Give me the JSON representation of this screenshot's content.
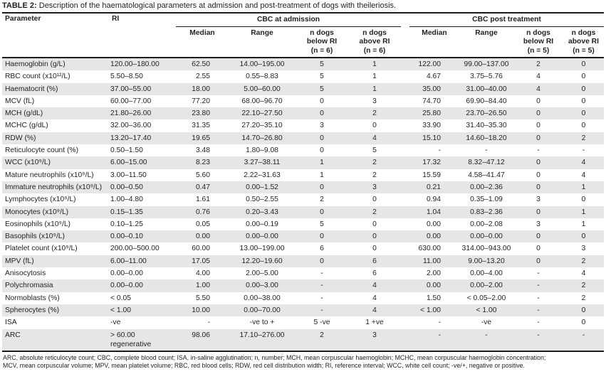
{
  "title": {
    "label": "TABLE 2:",
    "text": " Description of the haematological parameters at admission and post-treatment of dogs with theileriosis."
  },
  "table": {
    "header": {
      "parameter": "Parameter",
      "ri": "RI",
      "group_admission": "CBC at admission",
      "group_post": "CBC post treatment",
      "adm_cols": [
        "Median",
        "Range",
        "n dogs\nbelow RI\n(n = 6)",
        "n dogs\nabove RI\n(n = 6)"
      ],
      "post_cols": [
        "Median",
        "Range",
        "n dogs\nbelow RI\n(n = 5)",
        "n dogs\nabove RI\n(n = 5)"
      ]
    },
    "rows": [
      {
        "parameter": "Haemoglobin (g/L)",
        "ri": "120.00–180.00",
        "adm": [
          "62.50",
          "14.00–195.00",
          "5",
          "1"
        ],
        "post": [
          "122.00",
          "99.00–137.00",
          "2",
          "0"
        ]
      },
      {
        "parameter": "RBC count (x10¹²/L)",
        "ri": "5.50–8.50",
        "adm": [
          "2.55",
          "0.55–8.83",
          "5",
          "1"
        ],
        "post": [
          "4.67",
          "3.75–5.76",
          "4",
          "0"
        ]
      },
      {
        "parameter": "Haematocrit (%)",
        "ri": "37.00–55.00",
        "adm": [
          "18.00",
          "5.00–60.00",
          "5",
          "1"
        ],
        "post": [
          "35.00",
          "31.00–40.00",
          "4",
          "0"
        ]
      },
      {
        "parameter": "MCV (fL)",
        "ri": "60.00–77.00",
        "adm": [
          "77.20",
          "68.00–96.70",
          "0",
          "3"
        ],
        "post": [
          "74.70",
          "69.90–84.40",
          "0",
          "0"
        ]
      },
      {
        "parameter": "MCH (g/dL)",
        "ri": "21.80–26.00",
        "adm": [
          "23.80",
          "22.10–27.50",
          "0",
          "2"
        ],
        "post": [
          "25.80",
          "23.70–26.50",
          "0",
          "0"
        ]
      },
      {
        "parameter": "MCHC (g/dL)",
        "ri": "32.00–36.00",
        "adm": [
          "31.35",
          "27.20–35.10",
          "3",
          "0"
        ],
        "post": [
          "33.90",
          "31.40–35.30",
          "0",
          "0"
        ]
      },
      {
        "parameter": "RDW (%)",
        "ri": "13.20–17.40",
        "adm": [
          "19.65",
          "14.70–26.80",
          "0",
          "4"
        ],
        "post": [
          "15.10",
          "14.60–18.20",
          "0",
          "2"
        ]
      },
      {
        "parameter": "Reticulocyte count (%)",
        "ri": "0.50–1.50",
        "adm": [
          "3.48",
          "1.80–9.08",
          "0",
          "5"
        ],
        "post": [
          "-",
          "-",
          "-",
          "-"
        ]
      },
      {
        "parameter": "WCC (x10⁹/L)",
        "ri": "6.00–15.00",
        "adm": [
          "8.23",
          "3.27–38.11",
          "1",
          "2"
        ],
        "post": [
          "17.32",
          "8.32–47.12",
          "0",
          "4"
        ]
      },
      {
        "parameter": "Mature neutrophils (x10⁹/L)",
        "ri": "3.00–11.50",
        "adm": [
          "5.60",
          "2.22–31.63",
          "1",
          "2"
        ],
        "post": [
          "15.59",
          "4.58–41.47",
          "0",
          "4"
        ]
      },
      {
        "parameter": "Immature neutrophils (x10⁹/L)",
        "ri": "0.00–0.50",
        "adm": [
          "0.47",
          "0.00–1.52",
          "0",
          "3"
        ],
        "post": [
          "0.21",
          "0.00–2.36",
          "0",
          "1"
        ]
      },
      {
        "parameter": "Lymphocytes (x10⁹/L)",
        "ri": "1.00–4.80",
        "adm": [
          "1.61",
          "0.50–2.55",
          "2",
          "0"
        ],
        "post": [
          "0.94",
          "0.35–1.09",
          "3",
          "0"
        ]
      },
      {
        "parameter": "Monocytes (x10⁹/L)",
        "ri": "0.15–1.35",
        "adm": [
          "0.76",
          "0.20–3.43",
          "0",
          "2"
        ],
        "post": [
          "1.04",
          "0.83–2.36",
          "0",
          "1"
        ]
      },
      {
        "parameter": "Eosinophils (x10⁹/L)",
        "ri": "0.10–1.25",
        "adm": [
          "0.05",
          "0.00–0.19",
          "5",
          "0"
        ],
        "post": [
          "0.00",
          "0.00–2.08",
          "3",
          "1"
        ]
      },
      {
        "parameter": "Basophils (x10⁹/L)",
        "ri": "0.00–0.10",
        "adm": [
          "0.00",
          "0.00–0.00",
          "0",
          "0"
        ],
        "post": [
          "0.00",
          "0.00–0.00",
          "0",
          "0"
        ]
      },
      {
        "parameter": "Platelet count (x10⁹/L)",
        "ri": "200.00–500.00",
        "adm": [
          "60.00",
          "13.00–199.00",
          "6",
          "0"
        ],
        "post": [
          "630.00",
          "314.00–943.00",
          "0",
          "3"
        ]
      },
      {
        "parameter": "MPV (fL)",
        "ri": "6.00–11.00",
        "adm": [
          "17.05",
          "12.20–19.60",
          "0",
          "6"
        ],
        "post": [
          "11.00",
          "9.00–13.20",
          "0",
          "2"
        ]
      },
      {
        "parameter": "Anisocytosis",
        "ri": "0.00–0.00",
        "adm": [
          "4.00",
          "2.00–5.00",
          "-",
          "6"
        ],
        "post": [
          "2.00",
          "0.00–4.00",
          "-",
          "4"
        ]
      },
      {
        "parameter": "Polychromasia",
        "ri": "0.00–0.00",
        "adm": [
          "1.00",
          "0.00–3.00",
          "-",
          "4"
        ],
        "post": [
          "0.00",
          "0.00–2.00",
          "-",
          "2"
        ]
      },
      {
        "parameter": "Normoblasts (%)",
        "ri": "< 0.05",
        "adm": [
          "5.50",
          "0.00–38.00",
          "-",
          "4"
        ],
        "post": [
          "1.50",
          "< 0.05–2.00",
          "-",
          "2"
        ]
      },
      {
        "parameter": "Spherocytes (%)",
        "ri": "< 1.00",
        "adm": [
          "10.00",
          "0.00–70.00",
          "-",
          "4"
        ],
        "post": [
          "< 1.00",
          "< 1.00",
          "-",
          "0"
        ]
      },
      {
        "parameter": "ISA",
        "ri": "-ve",
        "adm": [
          "-",
          "-ve to +",
          "5 -ve",
          "1 +ve"
        ],
        "post": [
          "-",
          "-ve",
          "-",
          "0"
        ]
      },
      {
        "parameter": "ARC",
        "ri": "> 60.00 regenerative",
        "adm": [
          "98.06",
          "17.10–276.00",
          "2",
          "3"
        ],
        "post": [
          "-",
          "-",
          "-",
          "-"
        ]
      }
    ]
  },
  "footnote": {
    "line1": "ARC, absolute reticulocyte count; CBC, complete blood count; ISA, in-saline agglutination; n, number; MCH, mean corpuscular haemoglobin; MCHC, mean corpuscular haemoglobin concentration;",
    "line2": "MCV, mean corpuscular volume; MPV, mean platelet volume; RBC, red blood cells; RDW, red cell distribution width; RI, reference interval; WCC, white cell count; -ve/+, negative or positive."
  }
}
